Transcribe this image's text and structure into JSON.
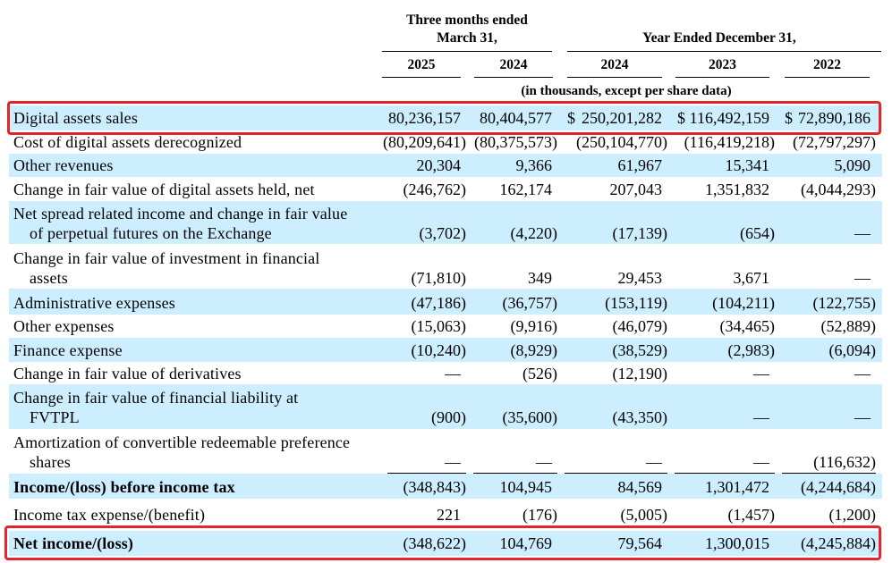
{
  "header": {
    "group_quarter": [
      "Three months ended",
      "March 31,"
    ],
    "group_year": "Year Ended December 31,",
    "years": [
      "2025",
      "2024",
      "2024",
      "2023",
      "2022"
    ],
    "units_note": "(in thousands, except per share data)"
  },
  "colors": {
    "band_blue": "#cceeff",
    "highlight_red": "#e3262b"
  },
  "rows": [
    {
      "label": [
        "Digital assets sales"
      ],
      "values": [
        "80,236,157",
        "80,404,577",
        "250,201,282",
        "116,492,159",
        "72,890,186"
      ],
      "dollar_prefix": [
        "$",
        "$",
        "$"
      ]
    },
    {
      "label": [
        "Cost of digital assets derecognized"
      ],
      "values": [
        "(80,209,641)",
        "(80,375,573)",
        "(250,104,770)",
        "(116,419,218)",
        "(72,797,297)"
      ]
    },
    {
      "label": [
        "Other revenues"
      ],
      "values": [
        "20,304",
        "9,366",
        "61,967",
        "15,341",
        "5,090"
      ]
    },
    {
      "label": [
        "Change in fair value of digital assets held, net"
      ],
      "values": [
        "(246,762)",
        "162,174",
        "207,043",
        "1,351,832",
        "(4,044,293)"
      ]
    },
    {
      "label": [
        "Net spread related income and change in fair value",
        "of perpetual futures on the Exchange"
      ],
      "values": [
        "(3,702)",
        "(4,220)",
        "(17,139)",
        "(654)",
        "—"
      ]
    },
    {
      "label": [
        "Change in fair value of investment in financial",
        "assets"
      ],
      "values": [
        "(71,810)",
        "349",
        "29,453",
        "3,671",
        "—"
      ]
    },
    {
      "label": [
        "Administrative expenses"
      ],
      "values": [
        "(47,186)",
        "(36,757)",
        "(153,119)",
        "(104,211)",
        "(122,755)"
      ]
    },
    {
      "label": [
        "Other expenses"
      ],
      "values": [
        "(15,063)",
        "(9,916)",
        "(46,079)",
        "(34,465)",
        "(52,889)"
      ]
    },
    {
      "label": [
        "Finance expense"
      ],
      "values": [
        "(10,240)",
        "(8,929)",
        "(38,529)",
        "(2,983)",
        "(6,094)"
      ]
    },
    {
      "label": [
        "Change in fair value of derivatives"
      ],
      "values": [
        "—",
        "(526)",
        "(12,190)",
        "—",
        "—"
      ]
    },
    {
      "label": [
        "Change in fair value of financial liability at",
        "FVTPL"
      ],
      "values": [
        "(900)",
        "(35,600)",
        "(43,350)",
        "—",
        "—"
      ]
    },
    {
      "label": [
        "Amortization of convertible redeemable preference",
        "shares"
      ],
      "values": [
        "—",
        "—",
        "—",
        "—",
        "(116,632)"
      ]
    },
    {
      "label": [
        "Income/(loss) before income tax"
      ],
      "values": [
        "(348,843)",
        "104,945",
        "84,569",
        "1,301,472",
        "(4,244,684)"
      ]
    },
    {
      "label": [
        "Income tax expense/(benefit)"
      ],
      "values": [
        "221",
        "(176)",
        "(5,005)",
        "(1,457)",
        "(1,200)"
      ]
    },
    {
      "label": [
        "Net income/(loss)"
      ],
      "values": [
        "(348,622)",
        "104,769",
        "79,564",
        "1,300,015",
        "(4,245,884)"
      ]
    }
  ]
}
